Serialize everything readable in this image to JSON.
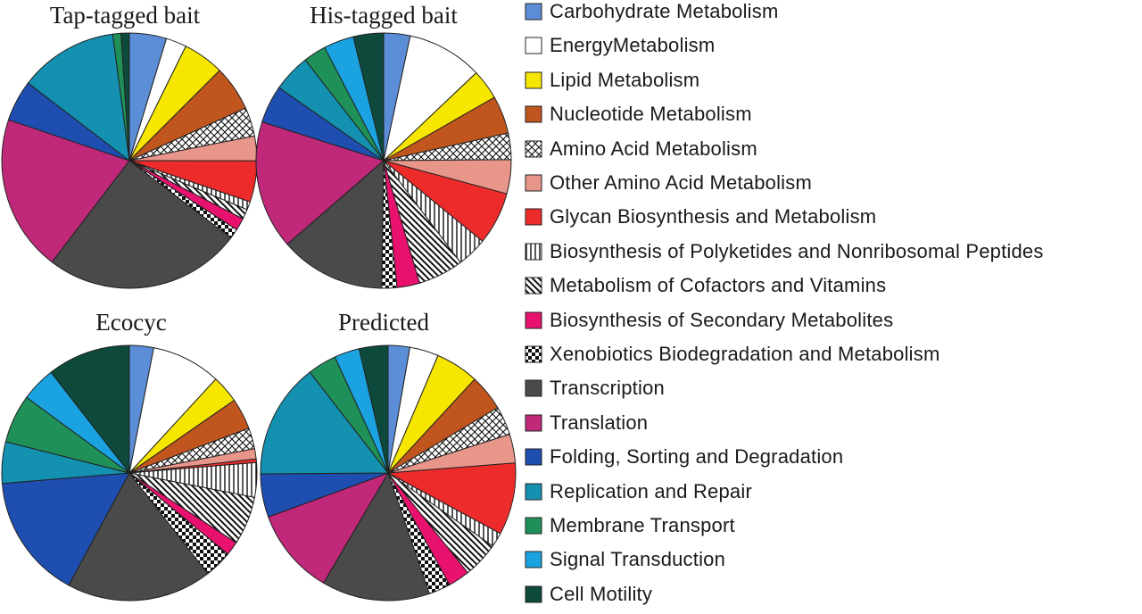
{
  "categories": [
    {
      "name": "Carbohydrate Metabolism",
      "color": "#5b8ed6",
      "pattern": "solid"
    },
    {
      "name": "EnergyMetabolism",
      "color": "#ffffff",
      "pattern": "solid"
    },
    {
      "name": "Lipid Metabolism",
      "color": "#f7e600",
      "pattern": "solid"
    },
    {
      "name": "Nucleotide Metabolism",
      "color": "#c0561e",
      "pattern": "solid"
    },
    {
      "name": "Amino Acid Metabolism",
      "color": "#ffffff",
      "pattern": "crosshatch"
    },
    {
      "name": "Other Amino Acid Metabolism",
      "color": "#e8958a",
      "pattern": "solid"
    },
    {
      "name": "Glycan Biosynthesis and Metabolism",
      "color": "#ee2b2b",
      "pattern": "solid"
    },
    {
      "name": "Biosynthesis of Polyketides and Nonribosomal Peptides",
      "color": "#ffffff",
      "pattern": "vertical"
    },
    {
      "name": "Metabolism of Cofactors and Vitamins",
      "color": "#ffffff",
      "pattern": "diagonal"
    },
    {
      "name": "Biosynthesis of Secondary Metabolites",
      "color": "#e8116e",
      "pattern": "solid"
    },
    {
      "name": "Xenobiotics Biodegradation and Metabolism",
      "color": "#ffffff",
      "pattern": "checker"
    },
    {
      "name": "Transcription",
      "color": "#4a4a4a",
      "pattern": "solid"
    },
    {
      "name": "Translation",
      "color": "#c0287a",
      "pattern": "solid"
    },
    {
      "name": "Folding, Sorting and Degradation",
      "color": "#1e4fb0",
      "pattern": "solid"
    },
    {
      "name": "Replication and Repair",
      "color": "#1490b0",
      "pattern": "solid"
    },
    {
      "name": "Membrane Transport",
      "color": "#1f9158",
      "pattern": "solid"
    },
    {
      "name": "Signal Transduction",
      "color": "#1aa3e0",
      "pattern": "solid"
    },
    {
      "name": "Cell Motility",
      "color": "#0d4a3c",
      "pattern": "solid"
    }
  ],
  "chart_data": [
    {
      "type": "pie",
      "title": "Tap-tagged bait",
      "values": [
        4.5,
        2.5,
        5,
        5.5,
        3.5,
        3,
        5,
        1,
        1.2,
        1.5,
        1.2,
        24,
        19,
        5,
        12,
        1,
        0,
        1
      ]
    },
    {
      "type": "pie",
      "title": "His-tagged bait",
      "values": [
        3.5,
        10,
        4,
        5,
        3.5,
        4.5,
        7,
        4,
        6,
        3,
        2,
        14,
        17,
        5,
        5,
        3,
        4,
        4
      ]
    },
    {
      "type": "pie",
      "title": "Ecocyc",
      "values": [
        3.5,
        10,
        4,
        4.5,
        3,
        1.5,
        0.5,
        5,
        7,
        2,
        4,
        21,
        0,
        18,
        6,
        7,
        5,
        12
      ]
    },
    {
      "type": "pie",
      "title": "Predicted",
      "values": [
        3,
        4,
        6,
        5,
        4,
        4,
        10,
        2,
        5,
        3,
        3,
        15,
        12,
        6,
        16,
        4,
        3.5,
        4
      ]
    }
  ]
}
